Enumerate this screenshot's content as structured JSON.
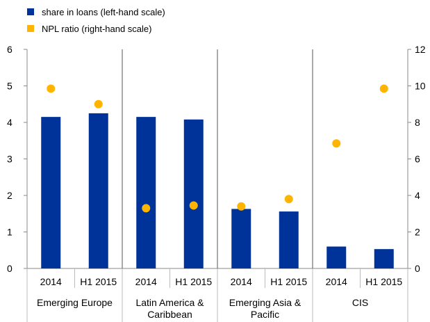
{
  "chart_data": {
    "type": "bar",
    "title": "",
    "xlabel": "",
    "ylabel": "",
    "legend_position": "top-left",
    "grid": false,
    "groups": [
      {
        "name": "Emerging Europe",
        "label_lines": [
          "Emerging Europe"
        ]
      },
      {
        "name": "Latin America & Caribbean",
        "label_lines": [
          "Latin America &",
          "Caribbean"
        ]
      },
      {
        "name": "Emerging Asia & Pacific",
        "label_lines": [
          "Emerging Asia &",
          "Pacific"
        ]
      },
      {
        "name": "CIS",
        "label_lines": [
          "CIS"
        ]
      }
    ],
    "categories": [
      "2014",
      "H1 2015",
      "2014",
      "H1 2015",
      "2014",
      "H1 2015",
      "2014",
      "H1 2015"
    ],
    "y_left": {
      "range": [
        0,
        6
      ],
      "ticks": [
        "0",
        "1",
        "2",
        "3",
        "4",
        "5",
        "6"
      ]
    },
    "y_right": {
      "range": [
        0,
        12
      ],
      "ticks": [
        "0",
        "2",
        "4",
        "6",
        "8",
        "10",
        "12"
      ]
    },
    "series": [
      {
        "name": "share in loans (left-hand scale)",
        "type": "bar",
        "axis": "left",
        "color": "#003399",
        "values": [
          4.15,
          4.25,
          4.15,
          4.08,
          1.63,
          1.56,
          0.6,
          0.53
        ]
      },
      {
        "name": "NPL ratio (right-hand scale)",
        "type": "scatter",
        "axis": "right",
        "color": "#FFB400",
        "values": [
          9.85,
          9.0,
          3.3,
          3.45,
          3.4,
          3.8,
          6.85,
          9.85
        ]
      }
    ]
  }
}
